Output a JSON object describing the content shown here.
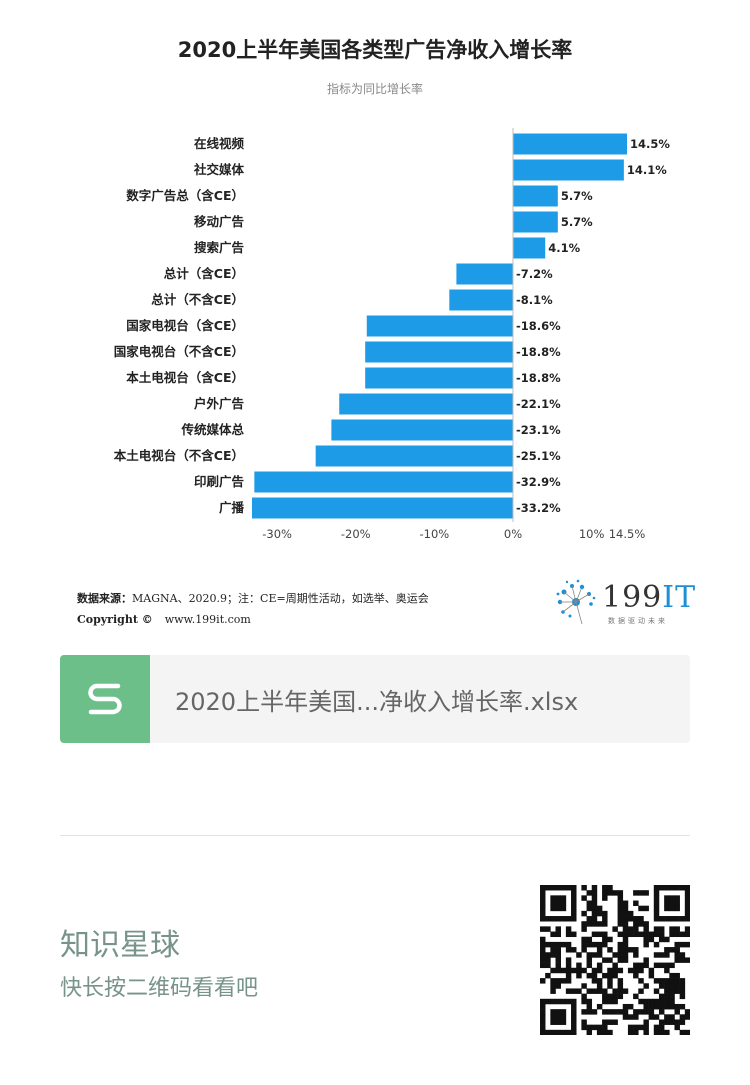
{
  "chart_data": {
    "type": "bar",
    "orientation": "horizontal",
    "title": "2020上半年美国各类型广告净收入增长率",
    "subtitle": "指标为同比增长率",
    "categories": [
      "在线视频",
      "社交媒体",
      "数字广告总（含CE）",
      "移动广告",
      "搜索广告",
      "总计（含CE）",
      "总计（不含CE）",
      "国家电视台（含CE）",
      "国家电视台（不含CE）",
      "本土电视台（含CE）",
      "户外广告",
      "传统媒体总",
      "本土电视台（不含CE）",
      "印刷广告",
      "广播"
    ],
    "values": [
      14.5,
      14.1,
      5.7,
      5.7,
      4.1,
      -7.2,
      -8.1,
      -18.6,
      -18.8,
      -18.8,
      -22.1,
      -23.1,
      -25.1,
      -32.9,
      -33.2
    ],
    "value_labels": [
      "14.5%",
      "14.1%",
      "5.7%",
      "5.7%",
      "4.1%",
      "-7.2%",
      "-8.1%",
      "-18.6%",
      "-18.8%",
      "-18.8%",
      "-22.1%",
      "-23.1%",
      "-25.1%",
      "-32.9%",
      "-33.2%"
    ],
    "xticks": [
      -30,
      -20,
      -10,
      0,
      10,
      14.5
    ],
    "xtick_labels": [
      "-30%",
      "-20%",
      "-10%",
      "0%",
      "10%",
      "14.5%"
    ],
    "xlim": [
      -33.2,
      14.5
    ],
    "bar_color": "#1e9be6"
  },
  "source": {
    "label": "数据来源：",
    "text": "MAGNA、2020.9；注：CE=周期性活动，如选举、奥运会",
    "copyright_label": "Copyright ©",
    "copyright_url": "www.199it.com"
  },
  "logo": {
    "text_num": "199",
    "text_it": "IT",
    "tagline": "数据驱动未来"
  },
  "file_card": {
    "icon": "spreadsheet-s-icon",
    "icon_color": "#6dbf8a",
    "filename": "2020上半年美国...净收入增长率.xlsx"
  },
  "planet": {
    "title": "知识星球",
    "subtitle": "快长按二维码看看吧",
    "text_color": "#77938a"
  }
}
